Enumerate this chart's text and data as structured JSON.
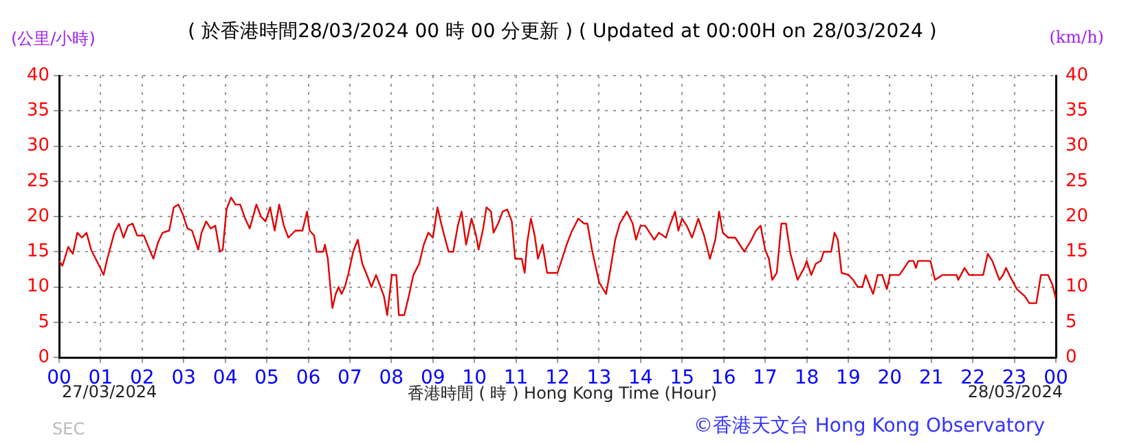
{
  "chart_data": {
    "type": "line",
    "title": "( 於香港時間28/03/2024 00 時 00 分更新 ) ( Updated at 00:00H on 28/03/2024 )",
    "xlabel": "香港時間 ( 時 )  Hong Kong Time (Hour)",
    "ylabel": "(公里/小時)",
    "y2label": "(km/h)",
    "annotations": [
      "27/03/2024",
      "28/03/2024",
      "SEC",
      "©香港天文台 Hong Kong Observatory"
    ],
    "xlim": [
      0,
      24
    ],
    "xticks": [
      {
        "value": 0,
        "label": "00"
      },
      {
        "value": 1,
        "label": "01"
      },
      {
        "value": 2,
        "label": "02"
      },
      {
        "value": 3,
        "label": "03"
      },
      {
        "value": 4,
        "label": "04"
      },
      {
        "value": 5,
        "label": "05"
      },
      {
        "value": 6,
        "label": "06"
      },
      {
        "value": 7,
        "label": "07"
      },
      {
        "value": 8,
        "label": "08"
      },
      {
        "value": 9,
        "label": "09"
      },
      {
        "value": 10,
        "label": "10"
      },
      {
        "value": 11,
        "label": "11"
      },
      {
        "value": 12,
        "label": "12"
      },
      {
        "value": 13,
        "label": "13"
      },
      {
        "value": 14,
        "label": "14"
      },
      {
        "value": 15,
        "label": "15"
      },
      {
        "value": 16,
        "label": "16"
      },
      {
        "value": 17,
        "label": "17"
      },
      {
        "value": 18,
        "label": "18"
      },
      {
        "value": 19,
        "label": "19"
      },
      {
        "value": 20,
        "label": "20"
      },
      {
        "value": 21,
        "label": "21"
      },
      {
        "value": 22,
        "label": "22"
      },
      {
        "value": 23,
        "label": "23"
      },
      {
        "value": 24,
        "label": "00"
      }
    ],
    "ylim": [
      0,
      40
    ],
    "yticks": [
      0,
      5,
      10,
      15,
      20,
      25,
      30,
      35,
      40
    ],
    "y2lim": [
      0,
      40
    ],
    "y2ticks": [
      0,
      5,
      10,
      15,
      20,
      25,
      30,
      35,
      40
    ],
    "grid": true,
    "legend": false,
    "marker": "none",
    "line_style": "solid",
    "series": [
      {
        "color": "#e00000",
        "x": [
          0,
          0.08,
          0.22,
          0.33,
          0.44,
          0.55,
          0.66,
          0.77,
          0.88,
          0.99,
          1.07,
          1.16,
          1.22,
          1.33,
          1.44,
          1.55,
          1.66,
          1.77,
          1.88,
          2.04,
          2.15,
          2.27,
          2.38,
          2.49,
          2.65,
          2.76,
          2.87,
          2.98,
          3.09,
          3.2,
          3.35,
          3.43,
          3.54,
          3.65,
          3.76,
          3.87,
          3.94,
          4.03,
          4.14,
          4.25,
          4.36,
          4.48,
          4.59,
          4.75,
          4.86,
          4.97,
          5.08,
          5.19,
          5.3,
          5.41,
          5.52,
          5.69,
          5.86,
          5.97,
          6.03,
          6.14,
          6.2,
          6.36,
          6.4,
          6.47,
          6.53,
          6.58,
          6.66,
          6.73,
          6.8,
          6.88,
          6.97,
          7.08,
          7.19,
          7.3,
          7.41,
          7.52,
          7.63,
          7.74,
          7.82,
          7.9,
          8.01,
          8.12,
          8.18,
          8.31,
          8.42,
          8.53,
          8.67,
          8.78,
          8.89,
          9.0,
          9.11,
          9.2,
          9.3,
          9.38,
          9.49,
          9.6,
          9.69,
          9.8,
          9.93,
          10.04,
          10.1,
          10.21,
          10.29,
          10.4,
          10.46,
          10.57,
          10.68,
          10.79,
          10.9,
          10.98,
          11.14,
          11.21,
          11.27,
          11.36,
          11.45,
          11.53,
          11.64,
          11.75,
          12.0,
          12.22,
          12.33,
          12.5,
          12.64,
          12.72,
          12.83,
          13.0,
          13.17,
          13.28,
          13.39,
          13.5,
          13.67,
          13.81,
          13.89,
          14.0,
          14.11,
          14.33,
          14.44,
          14.61,
          14.72,
          14.83,
          14.91,
          15.0,
          15.11,
          15.24,
          15.39,
          15.53,
          15.67,
          15.8,
          15.89,
          15.98,
          16.11,
          16.28,
          16.5,
          16.67,
          16.78,
          16.89,
          17.0,
          17.09,
          17.17,
          17.28,
          17.39,
          17.5,
          17.61,
          17.78,
          17.94,
          18.0,
          18.11,
          18.22,
          18.34,
          18.41,
          18.59,
          18.67,
          18.75,
          18.84,
          19.01,
          19.12,
          19.23,
          19.34,
          19.42,
          19.53,
          19.6,
          19.71,
          19.82,
          19.93,
          20.01,
          20.23,
          20.35,
          20.46,
          20.57,
          20.63,
          20.68,
          20.98,
          21.09,
          21.27,
          21.61,
          21.65,
          21.8,
          21.91,
          22.25,
          22.36,
          22.47,
          22.64,
          22.73,
          22.8,
          22.88,
          23.06,
          23.25,
          23.36,
          23.53,
          23.64,
          23.81,
          23.92,
          24.0
        ],
        "values": [
          13.7,
          13,
          15.7,
          14.7,
          17.7,
          17,
          17.7,
          15.3,
          14,
          12.7,
          11.7,
          14,
          15.3,
          17.7,
          19,
          17,
          18.7,
          19,
          17.3,
          17.3,
          15.7,
          14,
          16.3,
          17.7,
          18,
          21.3,
          21.7,
          20.3,
          18.3,
          18,
          15.3,
          17.7,
          19.3,
          18.3,
          18.7,
          15,
          15.3,
          21,
          22.7,
          21.7,
          21.7,
          19.7,
          18.3,
          21.7,
          20,
          19.3,
          21.3,
          18,
          21.7,
          18.7,
          17,
          18,
          18,
          20.7,
          18,
          17.3,
          15,
          15,
          16,
          14,
          10,
          7,
          9,
          10,
          9,
          10,
          12,
          15,
          16.7,
          13.3,
          11.7,
          10,
          11.7,
          10,
          8.7,
          6,
          11.7,
          11.7,
          6,
          6,
          8.7,
          11.7,
          13.3,
          16,
          17.7,
          17,
          21.3,
          19,
          16.7,
          15,
          15,
          18.7,
          20.7,
          16,
          19.7,
          17.3,
          15.3,
          18.3,
          21.3,
          20.7,
          17.7,
          19,
          20.7,
          21,
          19.3,
          14,
          14,
          12,
          16.3,
          19.7,
          17.3,
          14,
          16,
          12,
          12,
          16,
          17.7,
          19.7,
          19,
          19,
          15.3,
          10.7,
          9,
          12.7,
          16.7,
          19,
          20.7,
          19,
          16.7,
          18.7,
          18.7,
          16.7,
          17.7,
          17,
          19,
          20.7,
          18,
          19.7,
          18.7,
          17,
          19.7,
          17.3,
          14,
          16.7,
          20.7,
          17.7,
          17,
          17,
          15,
          16.7,
          18,
          18.7,
          15.3,
          14,
          11,
          12,
          19,
          19,
          14.7,
          11,
          12.7,
          13.7,
          11.7,
          13.3,
          13.7,
          15,
          15,
          17.7,
          16.7,
          12,
          11.7,
          11,
          10,
          10,
          11.7,
          10,
          9,
          11.7,
          11.7,
          9.7,
          11.7,
          11.7,
          12.7,
          13.7,
          13.7,
          12.7,
          13.7,
          13.7,
          11,
          11.7,
          11.7,
          11,
          12.7,
          11.7,
          11.7,
          14.7,
          13.7,
          11,
          11.7,
          12.7,
          11.7,
          9.7,
          8.7,
          7.7,
          7.7,
          11.7,
          11.7,
          10.3,
          8.3
        ]
      }
    ]
  }
}
